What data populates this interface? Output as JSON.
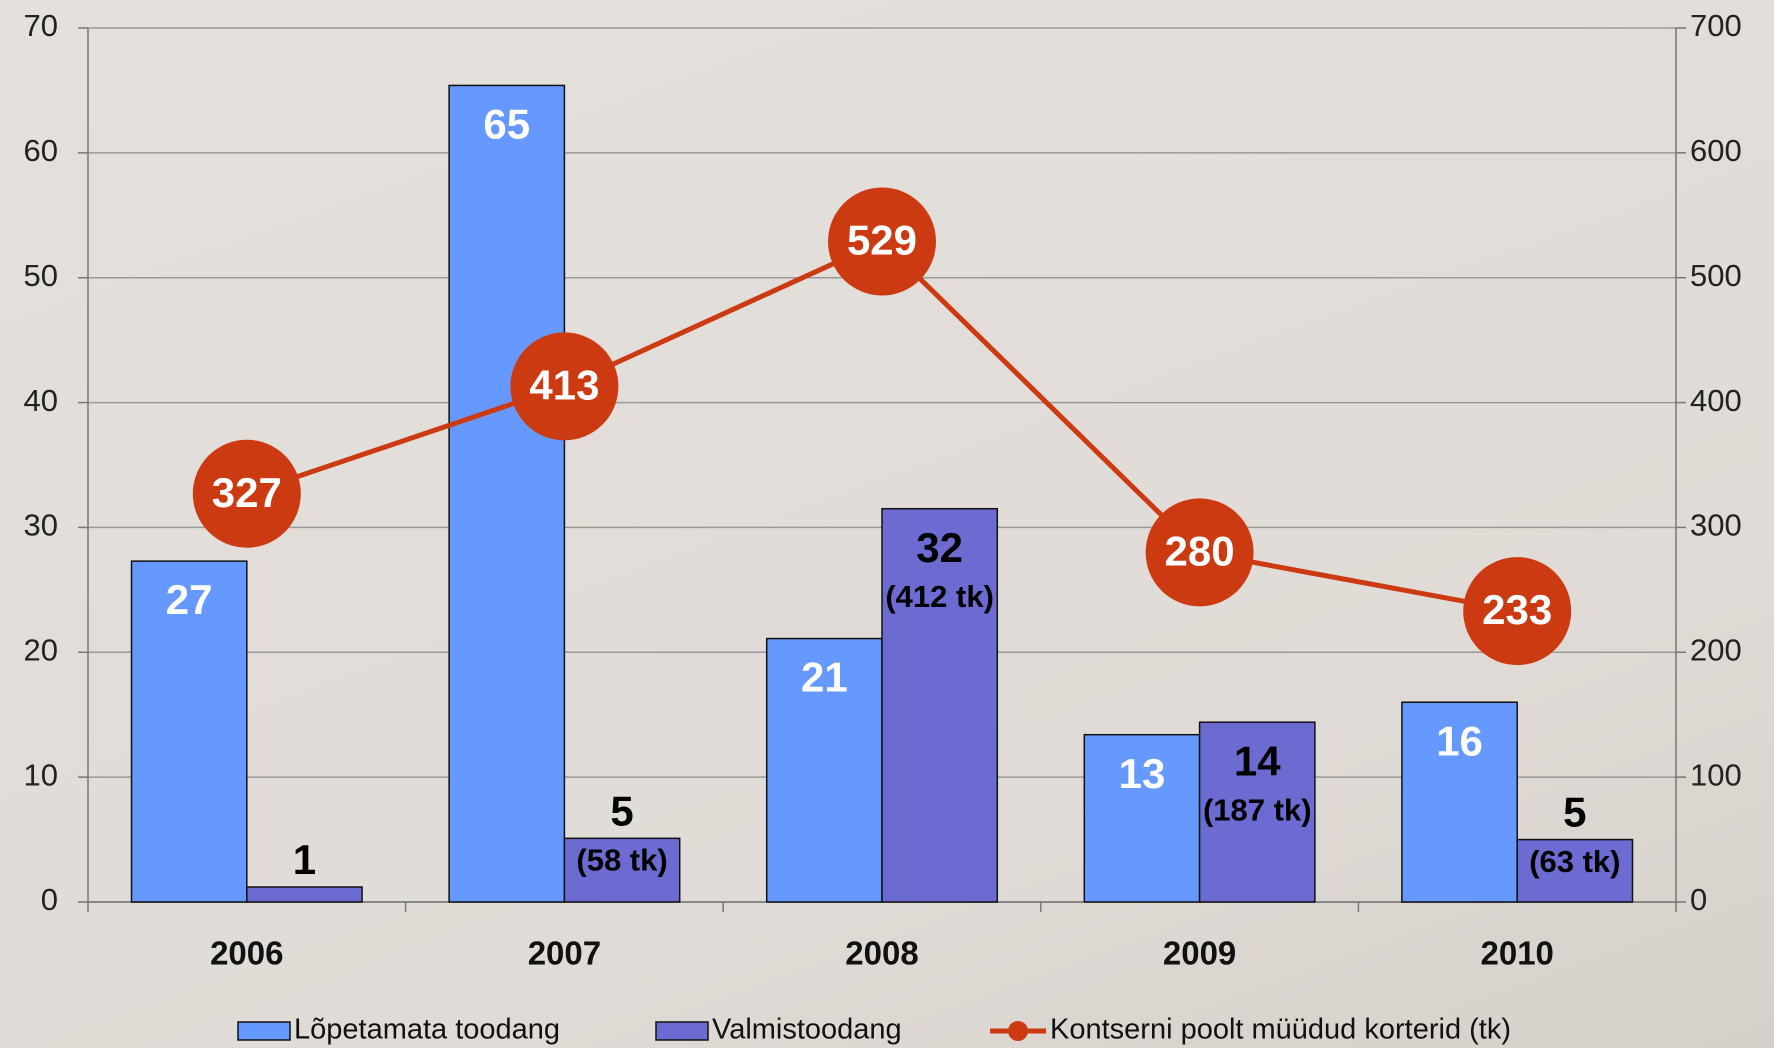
{
  "chart_data": {
    "type": "bar",
    "categories": [
      "2006",
      "2007",
      "2008",
      "2009",
      "2010"
    ],
    "series": [
      {
        "name": "Lõpetamata toodang",
        "color": "#6699ff",
        "values": [
          27.3,
          65.4,
          21.1,
          13.4,
          16.0
        ],
        "value_labels": [
          "27",
          "65",
          "21",
          "13",
          "16"
        ]
      },
      {
        "name": "Valmistoodang",
        "color": "#6b6bd2",
        "values": [
          1.2,
          5.1,
          31.5,
          14.4,
          5.0
        ],
        "value_labels": [
          "1",
          "5",
          "32",
          "14",
          "5"
        ],
        "notes": [
          null,
          "(58 tk)",
          "(412 tk)",
          "(187 tk)",
          "(63 tk)"
        ]
      },
      {
        "name": "Kontserni poolt müüdud korterid (tk)",
        "color": "#cc3a12",
        "type": "line",
        "axis": "y2",
        "values": [
          327,
          413,
          529,
          280,
          233
        ]
      }
    ],
    "ylim": [
      0,
      70
    ],
    "yticks": [
      0,
      10,
      20,
      30,
      40,
      50,
      60,
      70
    ],
    "y2lim": [
      0,
      700
    ],
    "y2ticks": [
      0,
      100,
      200,
      300,
      400,
      500,
      600,
      700
    ],
    "grid": true,
    "legend": "bottom"
  }
}
